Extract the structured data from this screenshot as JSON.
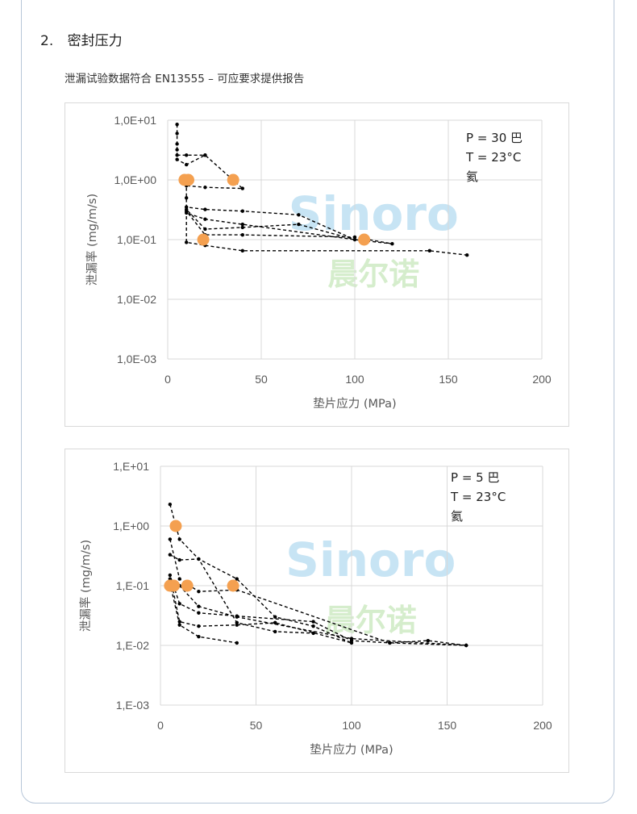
{
  "section": {
    "number": "2.",
    "title": "密封压力"
  },
  "subtitle": "泄漏试验数据符合 EN13555 – 可应要求提供报告",
  "watermark": {
    "latin": "Sinoro",
    "chinese": "晨尔诺"
  },
  "colors": {
    "line": "#000000",
    "highlight": "#f4a050",
    "grid": "#d9d9d9",
    "text": "#595959"
  },
  "chart_data": [
    {
      "type": "line",
      "title": "",
      "xlabel": "垫片应力 (MPa)",
      "ylabel": "泄漏率 (mg/m/s)",
      "xlim": [
        0,
        200
      ],
      "ylim": [
        0.001,
        10
      ],
      "yscale": "log",
      "grid": true,
      "x_ticks": [
        0,
        50,
        100,
        150,
        200
      ],
      "x_tick_labels": [
        "0",
        "50",
        "100",
        "150",
        "200"
      ],
      "y_ticks": [
        10,
        1,
        0.1,
        0.01,
        0.001
      ],
      "y_tick_labels": [
        "1,0E+01",
        "1,0E+00",
        "1,0E-01",
        "1,0E-02",
        "1,0E-03"
      ],
      "annotation_lines": [
        "P = 30 巴",
        "T = 23°C",
        "氦"
      ],
      "series": [
        {
          "x": [
            5,
            5,
            5,
            5,
            5,
            10,
            20,
            40,
            20,
            10,
            10,
            10,
            20,
            40,
            70,
            100,
            70,
            40,
            20,
            10,
            10,
            20,
            40,
            100,
            120,
            100,
            40,
            20,
            10,
            10,
            20,
            40,
            140,
            160
          ],
          "y": [
            8.5,
            6,
            4,
            3.2,
            2.2,
            1.8,
            2.6,
            0.72,
            0.75,
            0.8,
            0.5,
            0.35,
            0.32,
            0.3,
            0.26,
            0.1,
            0.18,
            0.16,
            0.15,
            0.32,
            0.28,
            0.22,
            0.18,
            0.1,
            0.085,
            0.11,
            0.12,
            0.12,
            0.3,
            0.09,
            0.08,
            0.065,
            0.065,
            0.055
          ]
        },
        {
          "x": [
            5,
            10,
            20
          ],
          "y": [
            2.6,
            2.6,
            2.6
          ]
        }
      ],
      "highlight_points": [
        {
          "x": 9,
          "y": 1
        },
        {
          "x": 11,
          "y": 1
        },
        {
          "x": 35,
          "y": 1
        },
        {
          "x": 19,
          "y": 0.1
        },
        {
          "x": 105,
          "y": 0.1
        }
      ]
    },
    {
      "type": "line",
      "title": "",
      "xlabel": "垫片应力 (MPa)",
      "ylabel": "泄漏率 (mg/m/s)",
      "xlim": [
        0,
        200
      ],
      "ylim": [
        0.001,
        10
      ],
      "yscale": "log",
      "grid": true,
      "x_ticks": [
        0,
        50,
        100,
        150,
        200
      ],
      "x_tick_labels": [
        "0",
        "50",
        "100",
        "150",
        "200"
      ],
      "y_ticks": [
        10,
        1,
        0.1,
        0.01,
        0.001
      ],
      "y_tick_labels": [
        "1,E+01",
        "1,E+00",
        "1,E-01",
        "1,E-02",
        "1,E-03"
      ],
      "annotation_lines": [
        "P = 5 巴",
        "T = 23°C",
        "氦"
      ],
      "series": [
        {
          "x": [
            5,
            10,
            20,
            40,
            60,
            80,
            100,
            60,
            40,
            20,
            10,
            5,
            10,
            20,
            40,
            80,
            100,
            120,
            140,
            160
          ],
          "y": [
            2.3,
            0.6,
            0.28,
            0.13,
            0.03,
            0.021,
            0.011,
            0.024,
            0.022,
            0.021,
            0.025,
            0.15,
            0.05,
            0.035,
            0.031,
            0.025,
            0.012,
            0.011,
            0.012,
            0.01
          ]
        },
        {
          "x": [
            5,
            10,
            20,
            40,
            60,
            80
          ],
          "y": [
            0.33,
            0.27,
            0.28,
            0.024,
            0.017,
            0.016
          ]
        },
        {
          "x": [
            5,
            10,
            20,
            40,
            120,
            160
          ],
          "y": [
            0.6,
            0.13,
            0.08,
            0.085,
            0.011,
            0.01
          ]
        },
        {
          "x": [
            5,
            10,
            20,
            40,
            100,
            160
          ],
          "y": [
            0.13,
            0.1,
            0.045,
            0.03,
            0.013,
            0.01
          ]
        },
        {
          "x": [
            5,
            10,
            20,
            40
          ],
          "y": [
            0.11,
            0.022,
            0.014,
            0.011
          ]
        }
      ],
      "highlight_points": [
        {
          "x": 8,
          "y": 1
        },
        {
          "x": 5,
          "y": 0.1
        },
        {
          "x": 7,
          "y": 0.1
        },
        {
          "x": 14,
          "y": 0.1
        },
        {
          "x": 38,
          "y": 0.1
        }
      ]
    }
  ]
}
